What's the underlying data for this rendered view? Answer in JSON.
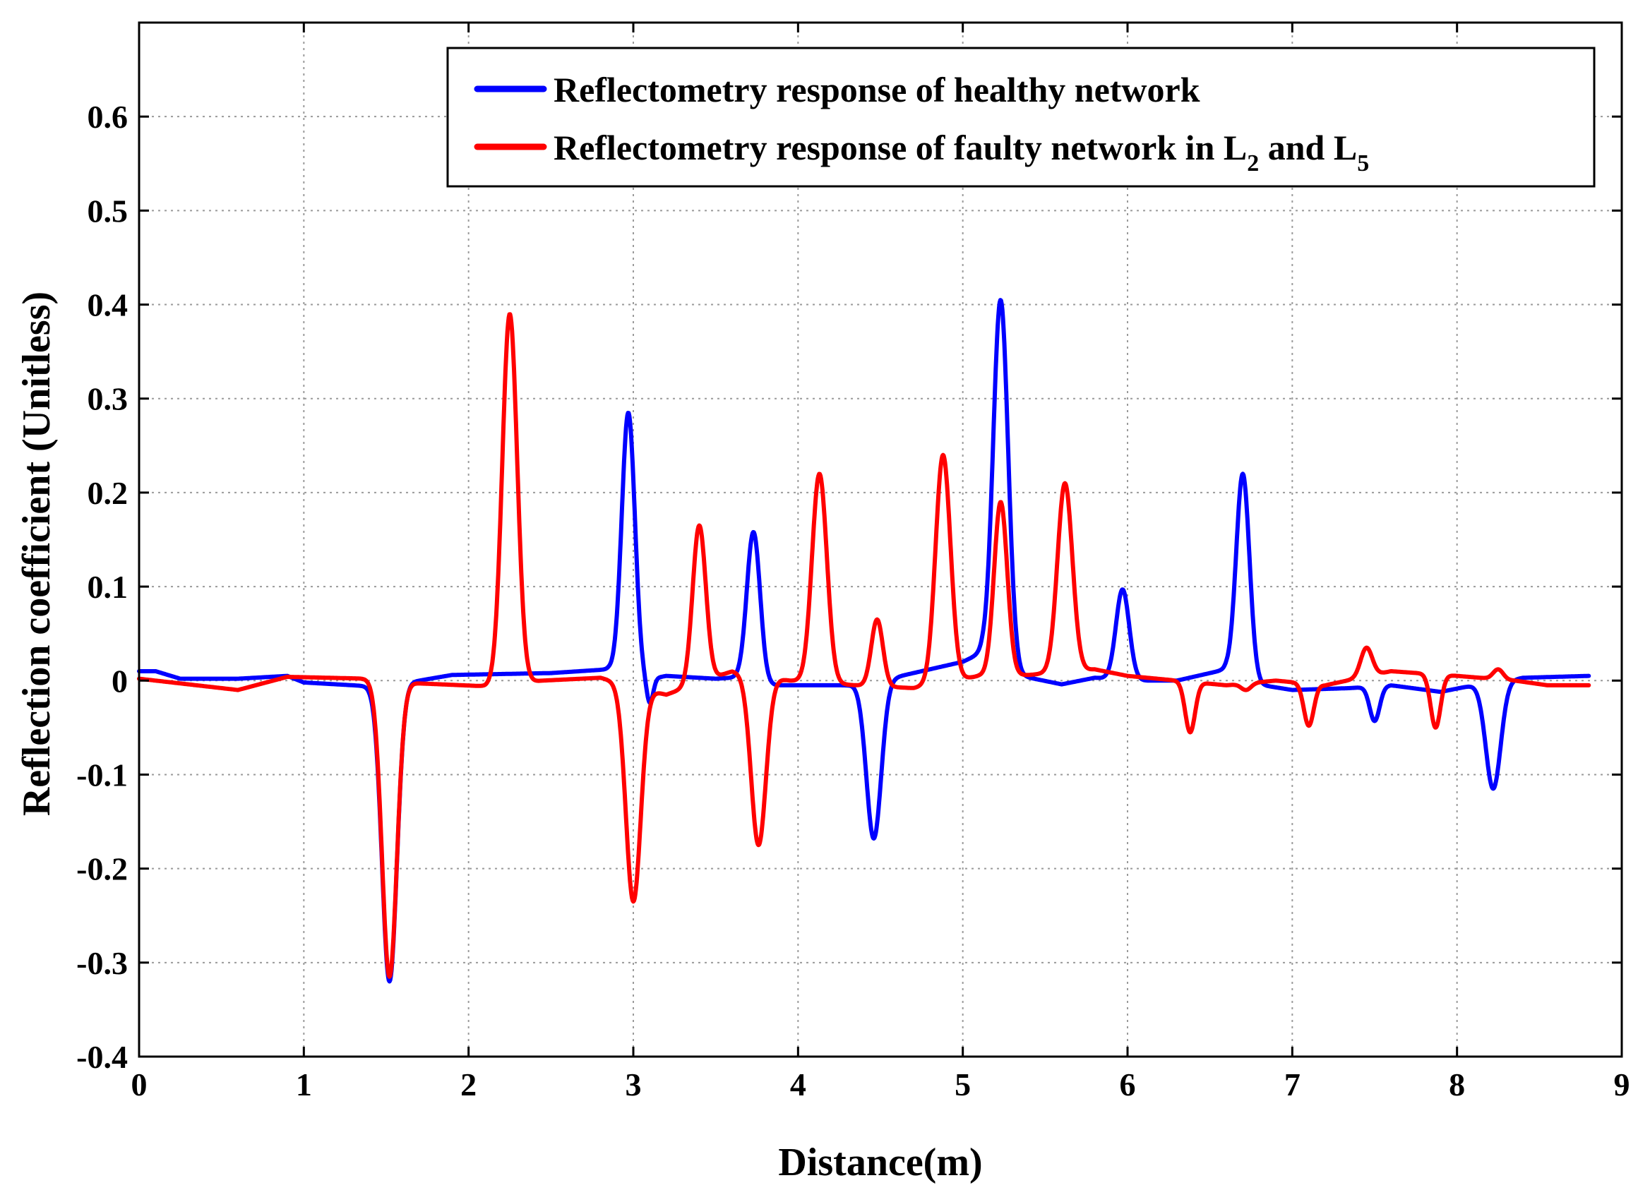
{
  "chart_data": {
    "type": "line",
    "xlabel": "Distance(m)",
    "ylabel": "Reflection coefficient (Unitless)",
    "xlim": [
      0,
      9
    ],
    "ylim": [
      -0.4,
      0.7
    ],
    "grid": true,
    "legend_position": "top-right",
    "x_ticks": [
      0,
      1,
      2,
      3,
      4,
      5,
      6,
      7,
      8,
      9
    ],
    "y_ticks": [
      -0.4,
      -0.3,
      -0.2,
      -0.1,
      0,
      0.1,
      0.2,
      0.3,
      0.4,
      0.5,
      0.6
    ],
    "x_tick_labels": [
      "0",
      "1",
      "2",
      "3",
      "4",
      "5",
      "6",
      "7",
      "8",
      "9"
    ],
    "y_tick_labels": [
      "-0.4",
      "-0.3",
      "-0.2",
      "-0.1",
      "0",
      "0.1",
      "0.2",
      "0.3",
      "0.4",
      "0.5",
      "0.6"
    ],
    "series": [
      {
        "name": "Reflectometry response of healthy network",
        "color": "#0000ff",
        "x_end": 8.8,
        "baseline": [
          [
            0,
            0.01
          ],
          [
            0.1,
            0.01
          ],
          [
            0.25,
            0.002
          ],
          [
            0.6,
            0.002
          ],
          [
            0.9,
            0.005
          ],
          [
            1.0,
            -0.002
          ],
          [
            1.4,
            -0.006
          ],
          [
            1.7,
            0.0
          ],
          [
            1.9,
            0.006
          ],
          [
            2.5,
            0.008
          ],
          [
            2.85,
            0.012
          ],
          [
            3.05,
            0.0
          ],
          [
            3.2,
            0.005
          ],
          [
            3.5,
            0.002
          ],
          [
            3.7,
            0.004
          ],
          [
            3.8,
            -0.005
          ],
          [
            4.3,
            -0.005
          ],
          [
            4.6,
            0.004
          ],
          [
            5.0,
            0.02
          ],
          [
            5.12,
            0.03
          ],
          [
            5.35,
            0.005
          ],
          [
            5.6,
            -0.004
          ],
          [
            5.8,
            0.003
          ],
          [
            6.1,
            0.0
          ],
          [
            6.3,
            0.0
          ],
          [
            6.6,
            0.012
          ],
          [
            6.82,
            -0.005
          ],
          [
            7.0,
            -0.01
          ],
          [
            7.35,
            -0.008
          ],
          [
            7.6,
            -0.005
          ],
          [
            7.9,
            -0.012
          ],
          [
            8.1,
            -0.005
          ],
          [
            8.4,
            0.003
          ],
          [
            8.8,
            0.005
          ]
        ],
        "peaks": [
          {
            "x": 1.52,
            "y": -0.32,
            "w": 0.045
          },
          {
            "x": 2.97,
            "y": 0.285,
            "w": 0.04
          },
          {
            "x": 3.1,
            "y": -0.025,
            "w": 0.02
          },
          {
            "x": 3.73,
            "y": 0.158,
            "w": 0.04
          },
          {
            "x": 4.46,
            "y": -0.168,
            "w": 0.045
          },
          {
            "x": 5.23,
            "y": 0.405,
            "w": 0.045
          },
          {
            "x": 5.97,
            "y": 0.097,
            "w": 0.04
          },
          {
            "x": 6.7,
            "y": 0.22,
            "w": 0.04
          },
          {
            "x": 7.5,
            "y": -0.043,
            "w": 0.03
          },
          {
            "x": 8.22,
            "y": -0.115,
            "w": 0.045
          }
        ]
      },
      {
        "name": "Reflectometry response of faulty network in L2 and L5",
        "color": "#ff0000",
        "x_end": 8.8,
        "baseline": [
          [
            0,
            0.002
          ],
          [
            0.3,
            -0.004
          ],
          [
            0.6,
            -0.01
          ],
          [
            0.9,
            0.004
          ],
          [
            1.4,
            0.002
          ],
          [
            1.7,
            -0.003
          ],
          [
            2.1,
            -0.006
          ],
          [
            2.45,
            0.0
          ],
          [
            2.8,
            0.003
          ],
          [
            3.2,
            -0.015
          ],
          [
            3.6,
            0.01
          ],
          [
            3.95,
            0.0
          ],
          [
            4.35,
            -0.005
          ],
          [
            4.7,
            -0.008
          ],
          [
            5.1,
            0.005
          ],
          [
            5.4,
            0.006
          ],
          [
            5.8,
            0.012
          ],
          [
            6.0,
            0.005
          ],
          [
            6.3,
            0.0
          ],
          [
            6.6,
            -0.005
          ],
          [
            6.9,
            0.0
          ],
          [
            7.2,
            -0.005
          ],
          [
            7.6,
            0.01
          ],
          [
            8.0,
            0.005
          ],
          [
            8.35,
            0.0
          ],
          [
            8.55,
            -0.005
          ],
          [
            8.8,
            -0.005
          ]
        ],
        "peaks": [
          {
            "x": 1.52,
            "y": -0.315,
            "w": 0.045
          },
          {
            "x": 2.25,
            "y": 0.39,
            "w": 0.045
          },
          {
            "x": 3.0,
            "y": -0.235,
            "w": 0.045
          },
          {
            "x": 3.4,
            "y": 0.165,
            "w": 0.04
          },
          {
            "x": 3.76,
            "y": -0.175,
            "w": 0.045
          },
          {
            "x": 4.13,
            "y": 0.22,
            "w": 0.045
          },
          {
            "x": 4.48,
            "y": 0.065,
            "w": 0.035
          },
          {
            "x": 4.88,
            "y": 0.24,
            "w": 0.045
          },
          {
            "x": 5.23,
            "y": 0.19,
            "w": 0.04
          },
          {
            "x": 5.62,
            "y": 0.21,
            "w": 0.045
          },
          {
            "x": 6.38,
            "y": -0.055,
            "w": 0.03
          },
          {
            "x": 6.72,
            "y": -0.01,
            "w": 0.03
          },
          {
            "x": 7.1,
            "y": -0.048,
            "w": 0.03
          },
          {
            "x": 7.45,
            "y": 0.035,
            "w": 0.035
          },
          {
            "x": 7.87,
            "y": -0.05,
            "w": 0.03
          },
          {
            "x": 8.25,
            "y": 0.012,
            "w": 0.03
          },
          {
            "x": 8.58,
            "y": -0.005,
            "w": 0.025
          }
        ]
      }
    ],
    "legend": [
      {
        "text": "Reflectometry response of healthy network",
        "color": "#0000ff"
      },
      {
        "text": "Reflectometry response of faulty network in L",
        "sub1": "2",
        "mid": " and L",
        "sub2": "5",
        "color": "#ff0000"
      }
    ]
  }
}
